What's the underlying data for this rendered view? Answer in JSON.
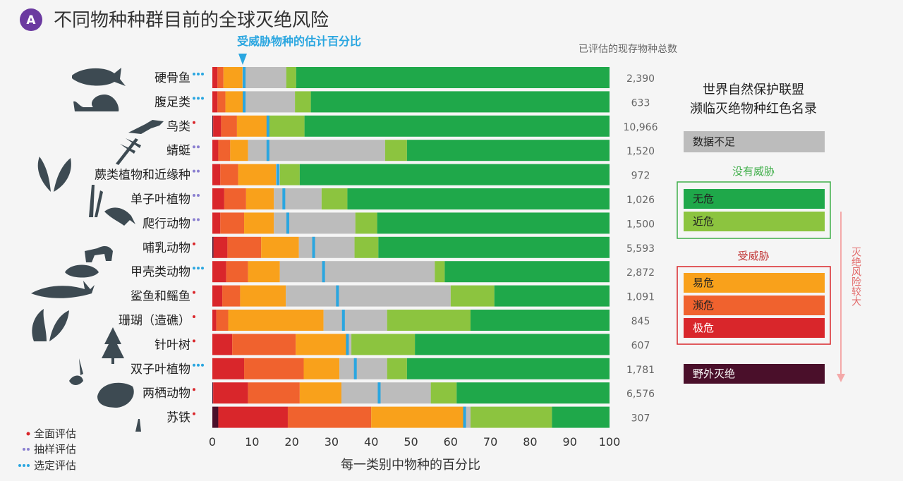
{
  "panel": {
    "badge": "A",
    "title": "不同物种种群目前的全球灭绝风险"
  },
  "threat_label": "受威胁物种的估计百分比",
  "total_header": "已评估的现存物种总数",
  "legend": {
    "title_line1": "世界自然保护联盟",
    "title_line2": "濒临灭绝物种红色名录",
    "dd": "数据不足",
    "not_threatened_title": "没有威胁",
    "lc": "无危",
    "nt": "近危",
    "threatened_title": "受威胁",
    "vu": "易危",
    "en": "濒危",
    "cr": "极危",
    "ew": "野外灭绝",
    "risk_arrow": "灭绝风险较大",
    "colors": {
      "EW": "#4a0f2a",
      "CR": "#d9262b",
      "EN": "#f0622e",
      "VU": "#f9a11b",
      "DD": "#bcbcbc",
      "NT": "#8cc43f",
      "LC": "#1fa84a",
      "threat_marker": "#2aa6e0",
      "green_box": "#3fae49",
      "red_box": "#d9262b"
    }
  },
  "methods": {
    "comprehensive": "全面评估",
    "sampled": "抽样评估",
    "selected": "选定评估",
    "colors": {
      "comprehensive": "#d9262b",
      "sampled": "#8a7fd0",
      "selected": "#2aa6e0"
    }
  },
  "chart_data": {
    "type": "bar",
    "orientation": "horizontal",
    "stacked": true,
    "xlabel": "每一类别中物种的百分比",
    "xlim": [
      0,
      100
    ],
    "xticks": [
      0,
      10,
      20,
      30,
      40,
      50,
      60,
      70,
      80,
      90,
      100
    ],
    "stack_order": [
      "EW",
      "CR",
      "EN",
      "VU",
      "DD",
      "NT",
      "LC"
    ],
    "categories": [
      {
        "name": "硬骨鱼",
        "method": "selected",
        "total": "2,390",
        "threat_pct": 8,
        "segments": {
          "EW": 0,
          "CR": 1.3,
          "EN": 1.5,
          "VU": 4.8,
          "DD": 11,
          "NT": 2.5,
          "LC": 78.9
        }
      },
      {
        "name": "腹足类",
        "method": "selected",
        "total": "633",
        "threat_pct": 8,
        "segments": {
          "EW": 0,
          "CR": 1.3,
          "EN": 2,
          "VU": 4.5,
          "DD": 13,
          "NT": 4,
          "LC": 75.2
        }
      },
      {
        "name": "鸟类",
        "method": "comprehensive",
        "total": "10,966",
        "threat_pct": 14,
        "segments": {
          "EW": 0.2,
          "CR": 2,
          "EN": 4,
          "VU": 7.5,
          "DD": 0.5,
          "NT": 9,
          "LC": 76.8
        }
      },
      {
        "name": "蜻蜓",
        "method": "sampled",
        "total": "1,520",
        "threat_pct": 14,
        "segments": {
          "EW": 0,
          "CR": 1.5,
          "EN": 3,
          "VU": 4.5,
          "DD": 34.5,
          "NT": 5.5,
          "LC": 51
        }
      },
      {
        "name": "蕨类植物和近缘种",
        "method": "sampled",
        "total": "972",
        "threat_pct": 16.5,
        "segments": {
          "EW": 0,
          "CR": 2,
          "EN": 4.5,
          "VU": 9.5,
          "DD": 1,
          "NT": 5,
          "LC": 78
        }
      },
      {
        "name": "单子叶植物",
        "method": "sampled",
        "total": "1,026",
        "threat_pct": 18,
        "segments": {
          "EW": 0,
          "CR": 3,
          "EN": 5.5,
          "VU": 7,
          "DD": 12,
          "NT": 6.5,
          "LC": 66
        }
      },
      {
        "name": "爬行动物",
        "method": "sampled",
        "total": "1,500",
        "threat_pct": 19,
        "segments": {
          "EW": 0,
          "CR": 2,
          "EN": 6,
          "VU": 7.5,
          "DD": 20.5,
          "NT": 5.5,
          "LC": 58.5
        }
      },
      {
        "name": "哺乳动物",
        "method": "comprehensive",
        "total": "5,593",
        "threat_pct": 25.5,
        "segments": {
          "EW": 0.3,
          "CR": 3.5,
          "EN": 8.5,
          "VU": 9.5,
          "DD": 14,
          "NT": 6,
          "LC": 58.2
        }
      },
      {
        "name": "甲壳类动物",
        "method": "selected",
        "total": "2,872",
        "threat_pct": 28,
        "segments": {
          "EW": 0,
          "CR": 3.5,
          "EN": 5.5,
          "VU": 8,
          "DD": 39,
          "NT": 2.5,
          "LC": 41.5
        }
      },
      {
        "name": "鲨鱼和鳐鱼",
        "method": "comprehensive",
        "total": "1,091",
        "threat_pct": 31.5,
        "segments": {
          "EW": 0,
          "CR": 2.5,
          "EN": 4.5,
          "VU": 11.5,
          "DD": 41.5,
          "NT": 11,
          "LC": 29
        }
      },
      {
        "name": "珊瑚（造礁）",
        "method": "comprehensive",
        "total": "845",
        "threat_pct": 33,
        "segments": {
          "EW": 0,
          "CR": 1,
          "EN": 3,
          "VU": 24,
          "DD": 16,
          "NT": 21,
          "LC": 35
        }
      },
      {
        "name": "针叶树",
        "method": "comprehensive",
        "total": "607",
        "threat_pct": 34,
        "segments": {
          "EW": 0,
          "CR": 5,
          "EN": 16,
          "VU": 13,
          "DD": 1,
          "NT": 16,
          "LC": 49
        }
      },
      {
        "name": "双子叶植物",
        "method": "selected",
        "total": "1,781",
        "threat_pct": 36,
        "segments": {
          "EW": 0,
          "CR": 8,
          "EN": 15,
          "VU": 9,
          "DD": 12,
          "NT": 5,
          "LC": 51
        }
      },
      {
        "name": "两栖动物",
        "method": "comprehensive",
        "total": "6,576",
        "threat_pct": 42,
        "segments": {
          "EW": 0.2,
          "CR": 8.8,
          "EN": 13,
          "VU": 10.5,
          "DD": 22.5,
          "NT": 6.5,
          "LC": 38.5
        }
      },
      {
        "name": "苏铁",
        "method": "comprehensive",
        "total": "307",
        "threat_pct": 63.5,
        "segments": {
          "EW": 1.5,
          "CR": 17.5,
          "EN": 21,
          "VU": 23.5,
          "DD": 1.5,
          "NT": 20.5,
          "LC": 14.5
        }
      }
    ]
  }
}
